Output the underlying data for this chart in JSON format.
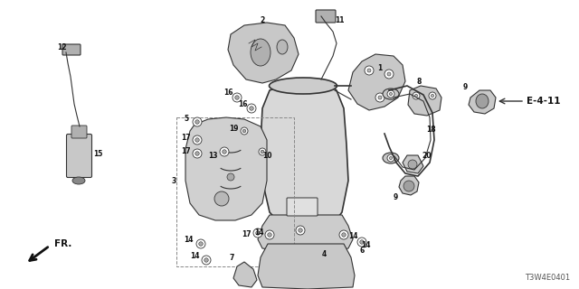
{
  "diagram_code": "T3W4E0401",
  "reference_label": "E-4-11",
  "direction_label": "FR.",
  "bg_color": "#ffffff",
  "line_color": "#333333",
  "fig_width": 6.4,
  "fig_height": 3.2,
  "dpi": 100
}
